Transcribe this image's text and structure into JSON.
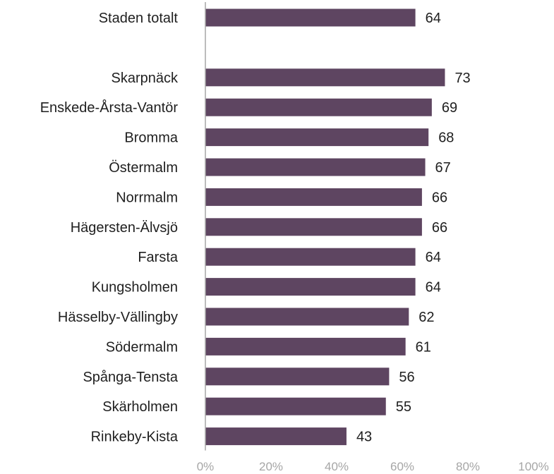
{
  "chart_data": {
    "type": "bar",
    "orientation": "horizontal",
    "categories": [
      "Staden totalt",
      "",
      "Skarpnäck",
      "Enskede-Årsta-Vantör",
      "Bromma",
      "Östermalm",
      "Norrmalm",
      "Hägersten-Älvsjö",
      "Farsta",
      "Kungsholmen",
      "Hässelby-Vällingby",
      "Södermalm",
      "Spånga-Tensta",
      "Skärholmen",
      "Rinkeby-Kista"
    ],
    "values": [
      64,
      null,
      73,
      69,
      68,
      67,
      66,
      66,
      64,
      64,
      62,
      61,
      56,
      55,
      43
    ],
    "value_labels": [
      "64",
      "",
      "73",
      "69",
      "68",
      "67",
      "66",
      "66",
      "64",
      "64",
      "62",
      "61",
      "56",
      "55",
      "43"
    ],
    "xlim": [
      0,
      100
    ],
    "x_ticks": [
      "0%",
      "20%",
      "40%",
      "60%",
      "80%",
      "100%"
    ],
    "x_tick_values": [
      0,
      20,
      40,
      60,
      80,
      100
    ],
    "title": "",
    "xlabel": "",
    "ylabel": "",
    "grid": false,
    "legend": "none",
    "bar_color": "#5e4561",
    "axis_color": "#a6a6a6"
  }
}
